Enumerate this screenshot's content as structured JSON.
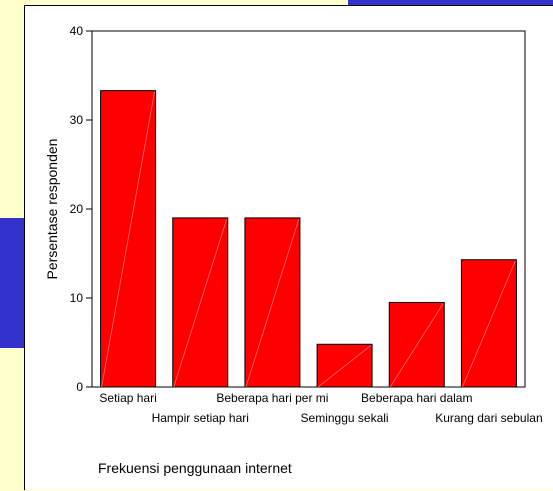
{
  "chart_data": {
    "type": "bar",
    "categories": [
      "Setiap hari",
      "Hampir setiap hari",
      "Beberapa hari per mi",
      "Seminggu sekali",
      "Beberapa hari dalam",
      "Kurang dari sebulan"
    ],
    "values": [
      33.3,
      19.0,
      19.0,
      4.8,
      9.5,
      14.3
    ],
    "xlabel": "Frekuensi penggunaan internet",
    "ylabel": "Persentase responden",
    "ylim": [
      0,
      40
    ],
    "yticks": [
      "0",
      "10",
      "20",
      "30",
      "40"
    ],
    "grid": false,
    "bar_color": "#ff0000",
    "bar_edge_color": "#000000"
  },
  "colors": {
    "background": "#ffffcc",
    "accent": "#3333cc"
  }
}
